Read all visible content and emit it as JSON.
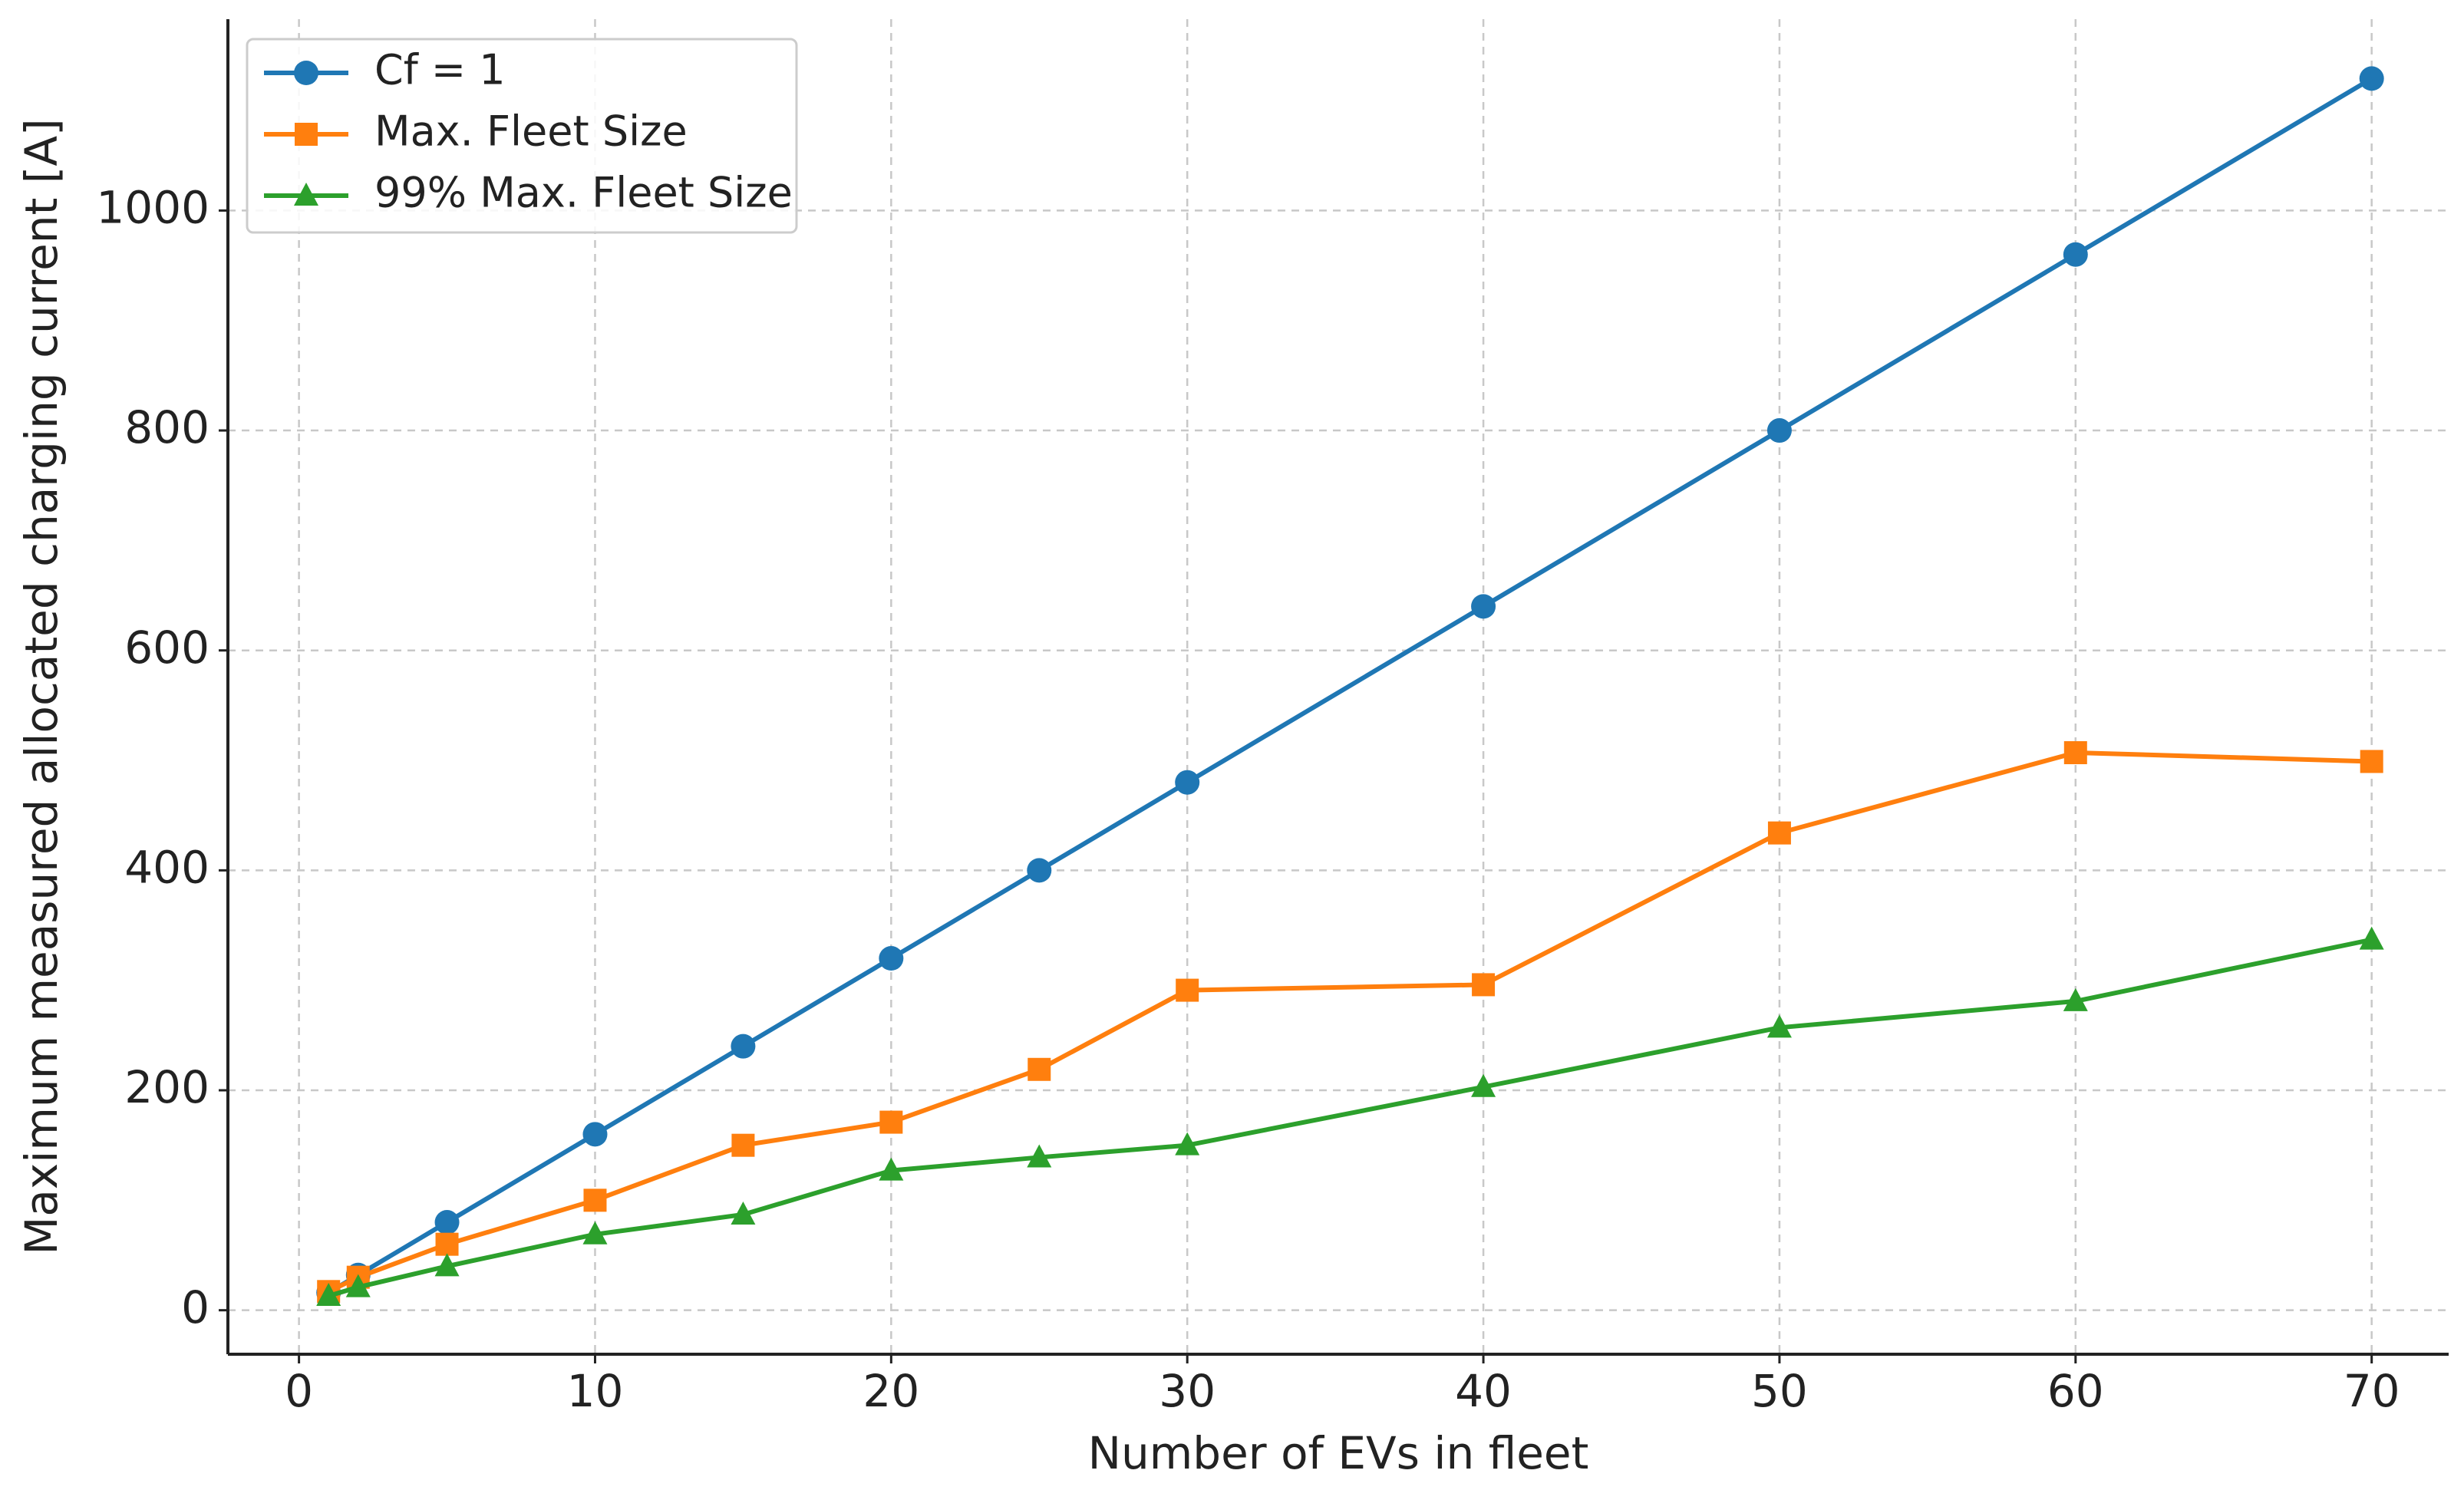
{
  "chart_data": {
    "type": "line",
    "x_label": "Number of EVs in fleet",
    "y_label": "Maximum measured allocated charging current [A]",
    "x": [
      1,
      2,
      5,
      10,
      15,
      20,
      25,
      30,
      40,
      50,
      60,
      70
    ],
    "series": [
      {
        "name": "Cf = 1",
        "color": "#1f77b4",
        "marker": "circle",
        "values": [
          16,
          32,
          80,
          160,
          240,
          320,
          400,
          480,
          640,
          800,
          960,
          1120
        ]
      },
      {
        "name": "Max. Fleet Size",
        "color": "#ff7f0e",
        "marker": "square",
        "values": [
          17,
          30,
          60,
          100,
          150,
          171,
          219,
          291,
          296,
          434,
          507,
          499
        ]
      },
      {
        "name": "99% Max. Fleet Size",
        "color": "#2ca02c",
        "marker": "triangle",
        "values": [
          13,
          21,
          40,
          69,
          87,
          127,
          139,
          150,
          203,
          257,
          281,
          337
        ]
      }
    ],
    "xlim": [
      -2.4,
      72.6
    ],
    "ylim": [
      -40,
      1174
    ],
    "xticks": [
      0,
      10,
      20,
      30,
      40,
      50,
      60,
      70
    ],
    "yticks": [
      0,
      200,
      400,
      600,
      800,
      1000
    ],
    "grid": true,
    "legend": "upper left"
  }
}
